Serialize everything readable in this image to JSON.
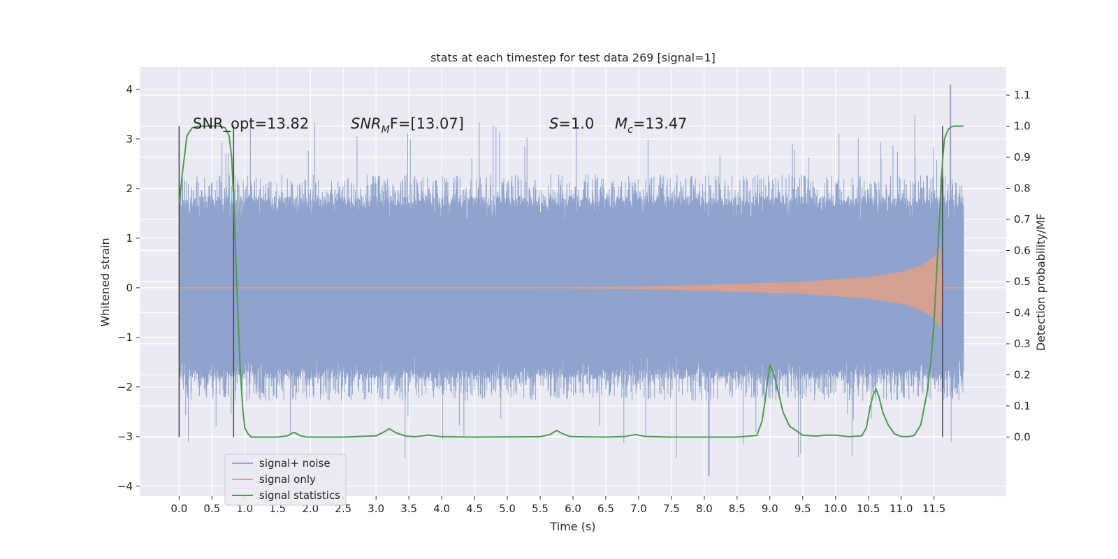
{
  "chart_data": {
    "type": "line",
    "title": "stats at each timestep for test data 269 [signal=1]",
    "xlabel": "Time (s)",
    "ylabel": "Whitened strain",
    "ylabel_right": "Detection probability/MF",
    "xlim": [
      -0.6,
      12.6
    ],
    "ylim": [
      -4.2,
      4.45
    ],
    "ylim_right": [
      -0.19,
      1.19
    ],
    "x_ticks": [
      "0.0",
      "0.5",
      "1.0",
      "1.5",
      "2.0",
      "2.5",
      "3.0",
      "3.5",
      "4.0",
      "4.5",
      "5.0",
      "5.5",
      "6.0",
      "6.5",
      "7.0",
      "7.5",
      "8.0",
      "8.5",
      "9.0",
      "9.5",
      "10.0",
      "10.5",
      "11.0",
      "11.5"
    ],
    "y_ticks": [
      "4",
      "3",
      "2",
      "1",
      "0",
      "−1",
      "−2",
      "−3",
      "−4"
    ],
    "y_right_ticks": [
      "1.1",
      "1.0",
      "0.9",
      "0.8",
      "0.7",
      "0.6",
      "0.5",
      "0.4",
      "0.3",
      "0.2",
      "0.1",
      "0.0"
    ],
    "grid": true,
    "legend_position": "lower-left",
    "annotations": {
      "snr_opt": "SNR_opt=13.82",
      "snr_mf_symbol": "SNR",
      "snr_mf_sub": "M",
      "snr_mf_rest": "F=[13.07]",
      "s_symbol": "S",
      "s_rest": "=1.0",
      "mc_symbol": "M",
      "mc_sub": "c",
      "mc_rest": "=13.47"
    },
    "vertical_markers_x": [
      0.0,
      0.83,
      11.63
    ],
    "series": [
      {
        "name": "signal+ noise",
        "color": "#8fa3cc",
        "axis": "left",
        "description_values": {
          "x_range": [
            0.0,
            11.95
          ],
          "typical_amplitude": 1.35,
          "peak_max": 4.1,
          "peak_min": -3.8
        }
      },
      {
        "name": "signal only",
        "color": "#e0a088",
        "axis": "left",
        "envelope": {
          "x": [
            0.0,
            6.0,
            7.5,
            8.5,
            9.5,
            10.5,
            11.0,
            11.3,
            11.5,
            11.6,
            11.63,
            11.95
          ],
          "y": [
            0.0,
            0.01,
            0.04,
            0.08,
            0.12,
            0.22,
            0.32,
            0.45,
            0.62,
            0.82,
            0.0,
            0.0
          ]
        }
      },
      {
        "name": "signal statistics",
        "color": "#4c9a4c",
        "axis": "right",
        "x": [
          0.0,
          0.05,
          0.12,
          0.2,
          0.3,
          0.45,
          0.6,
          0.7,
          0.76,
          0.8,
          0.84,
          0.88,
          0.93,
          0.97,
          1.0,
          1.05,
          1.1,
          1.2,
          1.5,
          1.65,
          1.75,
          1.85,
          1.95,
          2.5,
          3.0,
          3.1,
          3.2,
          3.3,
          3.45,
          3.6,
          3.8,
          4.0,
          4.5,
          5.5,
          5.65,
          5.75,
          5.85,
          5.95,
          6.1,
          6.5,
          6.8,
          6.95,
          7.1,
          7.5,
          8.5,
          8.8,
          8.88,
          8.93,
          8.97,
          9.0,
          9.05,
          9.1,
          9.2,
          9.3,
          9.5,
          9.7,
          9.85,
          10.0,
          10.2,
          10.4,
          10.47,
          10.53,
          10.58,
          10.62,
          10.66,
          10.72,
          10.8,
          10.9,
          11.0,
          11.1,
          11.2,
          11.3,
          11.4,
          11.45,
          11.5,
          11.55,
          11.6,
          11.63,
          11.66,
          11.72,
          11.76,
          11.8,
          11.85,
          11.95
        ],
        "y": [
          0.75,
          0.85,
          0.97,
          0.995,
          1.0,
          1.0,
          1.0,
          0.995,
          0.97,
          0.9,
          0.72,
          0.48,
          0.22,
          0.09,
          0.03,
          0.01,
          0.0,
          0.0,
          0.0,
          0.004,
          0.015,
          0.004,
          0.0,
          0.0,
          0.004,
          0.014,
          0.027,
          0.014,
          0.003,
          0.001,
          0.006,
          0.001,
          0.0,
          0.001,
          0.008,
          0.021,
          0.01,
          0.002,
          0.001,
          0.0,
          0.002,
          0.008,
          0.002,
          0.0,
          0.0,
          0.005,
          0.05,
          0.12,
          0.19,
          0.23,
          0.21,
          0.17,
          0.08,
          0.035,
          0.006,
          0.003,
          0.006,
          0.006,
          0.001,
          0.004,
          0.03,
          0.1,
          0.14,
          0.153,
          0.13,
          0.08,
          0.04,
          0.01,
          0.002,
          0.001,
          0.005,
          0.04,
          0.15,
          0.24,
          0.37,
          0.57,
          0.77,
          0.89,
          0.96,
          0.99,
          0.997,
          1.0,
          1.0,
          1.0
        ]
      }
    ]
  }
}
